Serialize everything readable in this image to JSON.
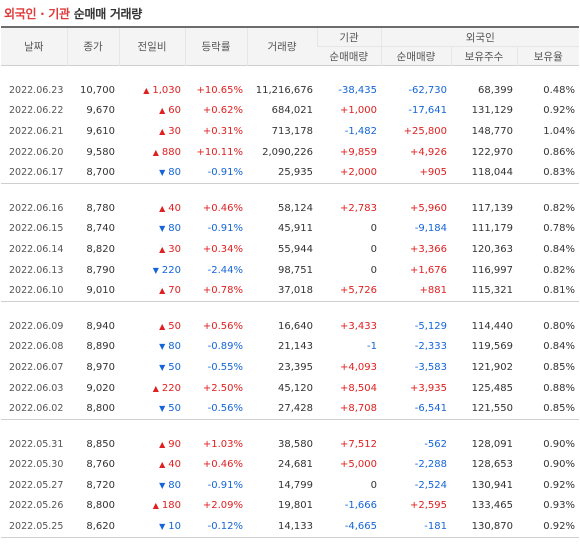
{
  "title": {
    "part1": "외국인 · 기관",
    "part2": "순매매 거래량"
  },
  "headers": {
    "date": "날짜",
    "close": "종가",
    "change": "전일비",
    "rate": "등락률",
    "volume": "거래량",
    "institution": "기관",
    "foreign": "외국인",
    "inst_net": "순매매량",
    "foreign_net": "순매매량",
    "holdings": "보유주수",
    "ratio": "보유율"
  },
  "groups": [
    [
      {
        "date": "2022.06.23",
        "close": "10,700",
        "dir": "up",
        "change": "1,030",
        "rate": "+10.65%",
        "volume": "11,216,676",
        "inst": "-38,435",
        "foreign": "-62,730",
        "holdings": "68,399",
        "ratio": "0.48%"
      },
      {
        "date": "2022.06.22",
        "close": "9,670",
        "dir": "up",
        "change": "60",
        "rate": "+0.62%",
        "volume": "684,021",
        "inst": "+1,000",
        "foreign": "-17,641",
        "holdings": "131,129",
        "ratio": "0.92%"
      },
      {
        "date": "2022.06.21",
        "close": "9,610",
        "dir": "up",
        "change": "30",
        "rate": "+0.31%",
        "volume": "713,178",
        "inst": "-1,482",
        "foreign": "+25,800",
        "holdings": "148,770",
        "ratio": "1.04%"
      },
      {
        "date": "2022.06.20",
        "close": "9,580",
        "dir": "up",
        "change": "880",
        "rate": "+10.11%",
        "volume": "2,090,226",
        "inst": "+9,859",
        "foreign": "+4,926",
        "holdings": "122,970",
        "ratio": "0.86%"
      },
      {
        "date": "2022.06.17",
        "close": "8,700",
        "dir": "down",
        "change": "80",
        "rate": "-0.91%",
        "volume": "25,935",
        "inst": "+2,000",
        "foreign": "+905",
        "holdings": "118,044",
        "ratio": "0.83%"
      }
    ],
    [
      {
        "date": "2022.06.16",
        "close": "8,780",
        "dir": "up",
        "change": "40",
        "rate": "+0.46%",
        "volume": "58,124",
        "inst": "+2,783",
        "foreign": "+5,960",
        "holdings": "117,139",
        "ratio": "0.82%"
      },
      {
        "date": "2022.06.15",
        "close": "8,740",
        "dir": "down",
        "change": "80",
        "rate": "-0.91%",
        "volume": "45,911",
        "inst": "0",
        "foreign": "-9,184",
        "holdings": "111,179",
        "ratio": "0.78%"
      },
      {
        "date": "2022.06.14",
        "close": "8,820",
        "dir": "up",
        "change": "30",
        "rate": "+0.34%",
        "volume": "55,944",
        "inst": "0",
        "foreign": "+3,366",
        "holdings": "120,363",
        "ratio": "0.84%"
      },
      {
        "date": "2022.06.13",
        "close": "8,790",
        "dir": "down",
        "change": "220",
        "rate": "-2.44%",
        "volume": "98,751",
        "inst": "0",
        "foreign": "+1,676",
        "holdings": "116,997",
        "ratio": "0.82%"
      },
      {
        "date": "2022.06.10",
        "close": "9,010",
        "dir": "up",
        "change": "70",
        "rate": "+0.78%",
        "volume": "37,018",
        "inst": "+5,726",
        "foreign": "+881",
        "holdings": "115,321",
        "ratio": "0.81%"
      }
    ],
    [
      {
        "date": "2022.06.09",
        "close": "8,940",
        "dir": "up",
        "change": "50",
        "rate": "+0.56%",
        "volume": "16,640",
        "inst": "+3,433",
        "foreign": "-5,129",
        "holdings": "114,440",
        "ratio": "0.80%"
      },
      {
        "date": "2022.06.08",
        "close": "8,890",
        "dir": "down",
        "change": "80",
        "rate": "-0.89%",
        "volume": "21,143",
        "inst": "-1",
        "foreign": "-2,333",
        "holdings": "119,569",
        "ratio": "0.84%"
      },
      {
        "date": "2022.06.07",
        "close": "8,970",
        "dir": "down",
        "change": "50",
        "rate": "-0.55%",
        "volume": "23,395",
        "inst": "+4,093",
        "foreign": "-3,583",
        "holdings": "121,902",
        "ratio": "0.85%"
      },
      {
        "date": "2022.06.03",
        "close": "9,020",
        "dir": "up",
        "change": "220",
        "rate": "+2.50%",
        "volume": "45,120",
        "inst": "+8,504",
        "foreign": "+3,935",
        "holdings": "125,485",
        "ratio": "0.88%"
      },
      {
        "date": "2022.06.02",
        "close": "8,800",
        "dir": "down",
        "change": "50",
        "rate": "-0.56%",
        "volume": "27,428",
        "inst": "+8,708",
        "foreign": "-6,541",
        "holdings": "121,550",
        "ratio": "0.85%"
      }
    ],
    [
      {
        "date": "2022.05.31",
        "close": "8,850",
        "dir": "up",
        "change": "90",
        "rate": "+1.03%",
        "volume": "38,580",
        "inst": "+7,512",
        "foreign": "-562",
        "holdings": "128,091",
        "ratio": "0.90%"
      },
      {
        "date": "2022.05.30",
        "close": "8,760",
        "dir": "up",
        "change": "40",
        "rate": "+0.46%",
        "volume": "24,681",
        "inst": "+5,000",
        "foreign": "-2,288",
        "holdings": "128,653",
        "ratio": "0.90%"
      },
      {
        "date": "2022.05.27",
        "close": "8,720",
        "dir": "down",
        "change": "80",
        "rate": "-0.91%",
        "volume": "14,799",
        "inst": "0",
        "foreign": "-2,524",
        "holdings": "130,941",
        "ratio": "0.92%"
      },
      {
        "date": "2022.05.26",
        "close": "8,800",
        "dir": "up",
        "change": "180",
        "rate": "+2.09%",
        "volume": "19,801",
        "inst": "-1,666",
        "foreign": "+2,595",
        "holdings": "133,465",
        "ratio": "0.93%"
      },
      {
        "date": "2022.05.25",
        "close": "8,620",
        "dir": "down",
        "change": "10",
        "rate": "-0.12%",
        "volume": "14,133",
        "inst": "-4,665",
        "foreign": "-181",
        "holdings": "130,870",
        "ratio": "0.92%"
      }
    ]
  ],
  "colors": {
    "up": "#e02020",
    "down": "#1565d8",
    "title_accent": "#e03a3a"
  }
}
